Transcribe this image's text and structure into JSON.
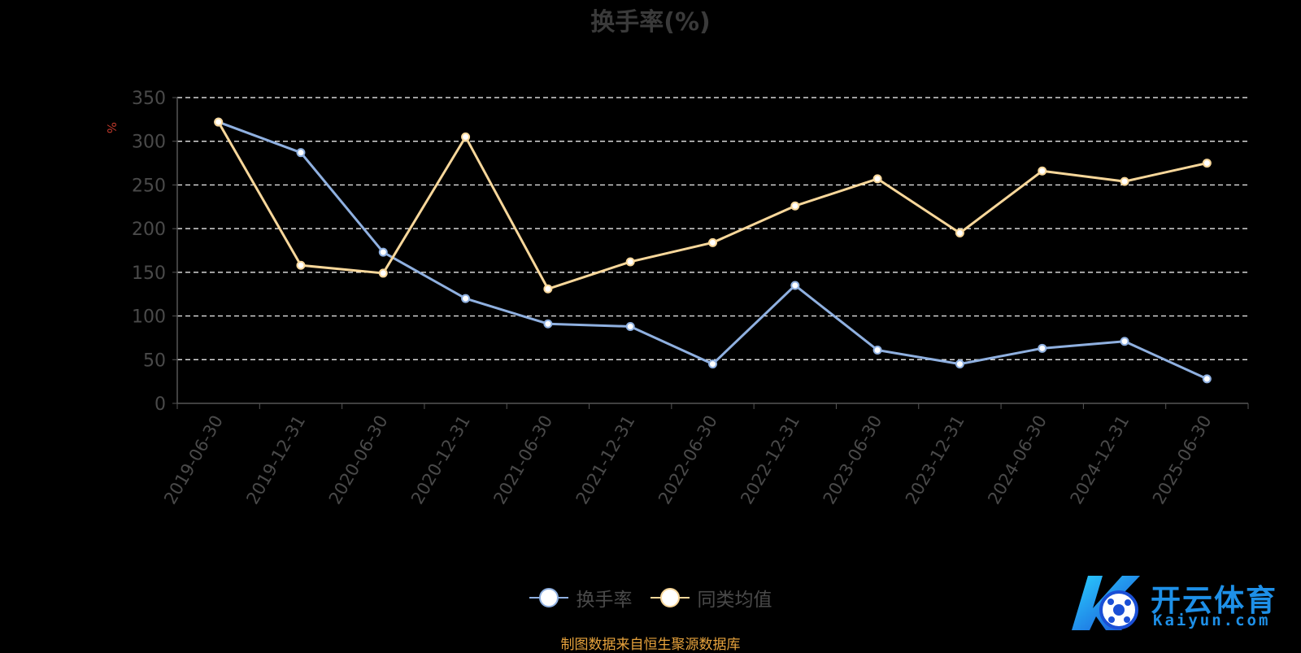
{
  "chart_data": {
    "type": "line",
    "title": "换手率(%)",
    "ylabel": "%",
    "ylim": [
      0,
      350
    ],
    "yticks": [
      0,
      50,
      100,
      150,
      200,
      250,
      300,
      350
    ],
    "grid": true,
    "legend_position": "bottom-center",
    "categories": [
      "2019-06-30",
      "2019-12-31",
      "2020-06-30",
      "2020-12-31",
      "2021-06-30",
      "2021-12-31",
      "2022-06-30",
      "2022-12-31",
      "2023-06-30",
      "2023-12-31",
      "2024-06-30",
      "2024-12-31",
      "2025-06-30"
    ],
    "series": [
      {
        "name": "换手率",
        "color": "#8fb0e0",
        "values": [
          322,
          287,
          173,
          120,
          91,
          88,
          45,
          135,
          61,
          45,
          63,
          71,
          28
        ]
      },
      {
        "name": "同类均值",
        "color": "#f8d79a",
        "values": [
          322,
          158,
          149,
          305,
          131,
          162,
          184,
          226,
          257,
          195,
          266,
          254,
          275
        ]
      }
    ]
  },
  "source_note": "制图数据来自恒生聚源数据库",
  "logo": {
    "text": "开云体育",
    "subtext": "Kaiyun.com"
  }
}
